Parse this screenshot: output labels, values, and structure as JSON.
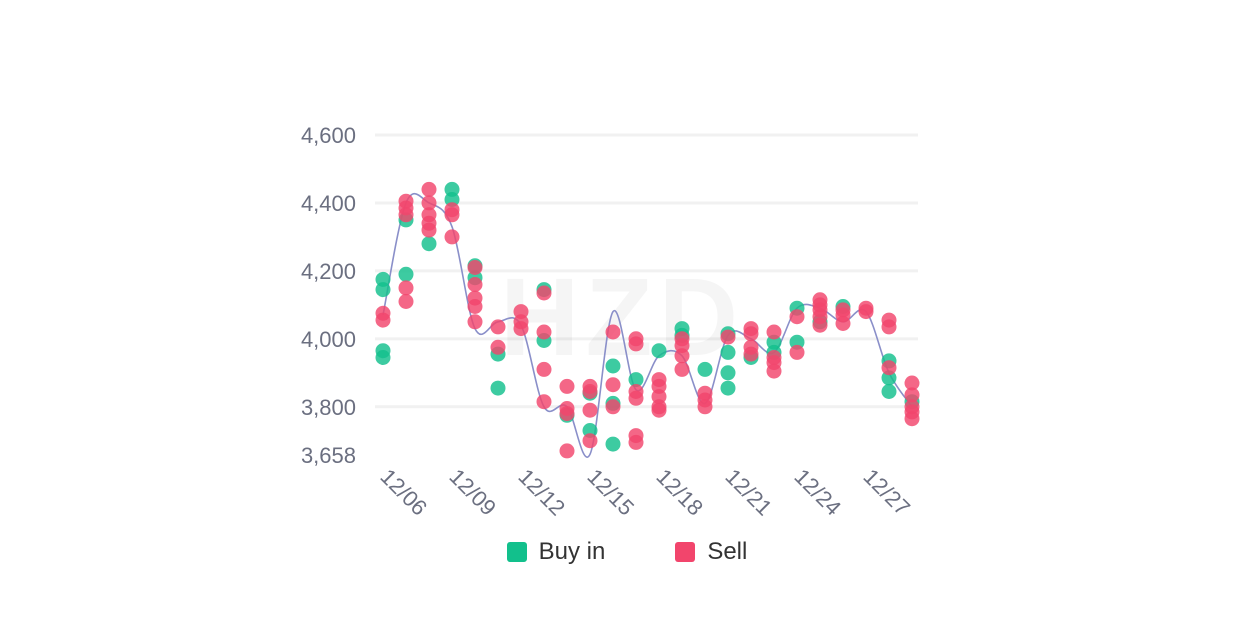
{
  "watermark": "HZD",
  "colors": {
    "buy": "#12c08c",
    "sell": "#f2456c",
    "trend": "#8a8fc9"
  },
  "chart_data": {
    "type": "scatter",
    "x_ticks": [
      "12/06",
      "12/09",
      "12/12",
      "12/15",
      "12/18",
      "12/21",
      "12/24",
      "12/27"
    ],
    "y_ticks": [
      "4,600",
      "4,400",
      "4,200",
      "4,000",
      "3,800",
      "3,658"
    ],
    "y_tick_values": [
      4600,
      4400,
      4200,
      4000,
      3800,
      3658
    ],
    "ylim": [
      3658,
      4600
    ],
    "x_start": "12/06",
    "x_end": "12/29",
    "grid": true,
    "legend_position": "bottom-center",
    "series": [
      {
        "name": "Buy in",
        "color": "#12c08c",
        "points": [
          [
            "12/06",
            4175
          ],
          [
            "12/06",
            4145
          ],
          [
            "12/06",
            3965
          ],
          [
            "12/06",
            3945
          ],
          [
            "12/07",
            4350
          ],
          [
            "12/07",
            4190
          ],
          [
            "12/08",
            4280
          ],
          [
            "12/09",
            4440
          ],
          [
            "12/09",
            4410
          ],
          [
            "12/10",
            4215
          ],
          [
            "12/10",
            4180
          ],
          [
            "12/11",
            3955
          ],
          [
            "12/11",
            3855
          ],
          [
            "12/13",
            4145
          ],
          [
            "12/13",
            3995
          ],
          [
            "12/14",
            3775
          ],
          [
            "12/15",
            3840
          ],
          [
            "12/15",
            3730
          ],
          [
            "12/16",
            3920
          ],
          [
            "12/16",
            3810
          ],
          [
            "12/16",
            3690
          ],
          [
            "12/17",
            3880
          ],
          [
            "12/18",
            3965
          ],
          [
            "12/19",
            4030
          ],
          [
            "12/19",
            4010
          ],
          [
            "12/20",
            3910
          ],
          [
            "12/21",
            4015
          ],
          [
            "12/21",
            3960
          ],
          [
            "12/21",
            3900
          ],
          [
            "12/21",
            3855
          ],
          [
            "12/22",
            3945
          ],
          [
            "12/23",
            3990
          ],
          [
            "12/23",
            3960
          ],
          [
            "12/24",
            4090
          ],
          [
            "12/24",
            3990
          ],
          [
            "12/25",
            4050
          ],
          [
            "12/26",
            4095
          ],
          [
            "12/28",
            3935
          ],
          [
            "12/28",
            3885
          ],
          [
            "12/28",
            3845
          ],
          [
            "12/29",
            3815
          ]
        ]
      },
      {
        "name": "Sell",
        "color": "#f2456c",
        "points": [
          [
            "12/06",
            4075
          ],
          [
            "12/06",
            4055
          ],
          [
            "12/07",
            4405
          ],
          [
            "12/07",
            4385
          ],
          [
            "12/07",
            4365
          ],
          [
            "12/07",
            4150
          ],
          [
            "12/07",
            4110
          ],
          [
            "12/08",
            4440
          ],
          [
            "12/08",
            4400
          ],
          [
            "12/08",
            4365
          ],
          [
            "12/08",
            4340
          ],
          [
            "12/08",
            4320
          ],
          [
            "12/09",
            4380
          ],
          [
            "12/09",
            4365
          ],
          [
            "12/09",
            4300
          ],
          [
            "12/10",
            4210
          ],
          [
            "12/10",
            4160
          ],
          [
            "12/10",
            4120
          ],
          [
            "12/10",
            4095
          ],
          [
            "12/10",
            4050
          ],
          [
            "12/11",
            4035
          ],
          [
            "12/11",
            3975
          ],
          [
            "12/12",
            4080
          ],
          [
            "12/12",
            4050
          ],
          [
            "12/12",
            4030
          ],
          [
            "12/13",
            4135
          ],
          [
            "12/13",
            4020
          ],
          [
            "12/13",
            3910
          ],
          [
            "12/13",
            3815
          ],
          [
            "12/14",
            3860
          ],
          [
            "12/14",
            3795
          ],
          [
            "12/14",
            3780
          ],
          [
            "12/14",
            3670
          ],
          [
            "12/15",
            3860
          ],
          [
            "12/15",
            3845
          ],
          [
            "12/15",
            3790
          ],
          [
            "12/15",
            3700
          ],
          [
            "12/16",
            4020
          ],
          [
            "12/16",
            3865
          ],
          [
            "12/16",
            3800
          ],
          [
            "12/17",
            4000
          ],
          [
            "12/17",
            3985
          ],
          [
            "12/17",
            3845
          ],
          [
            "12/17",
            3825
          ],
          [
            "12/17",
            3715
          ],
          [
            "12/17",
            3695
          ],
          [
            "12/18",
            3880
          ],
          [
            "12/18",
            3860
          ],
          [
            "12/18",
            3830
          ],
          [
            "12/18",
            3800
          ],
          [
            "12/18",
            3790
          ],
          [
            "12/19",
            4000
          ],
          [
            "12/19",
            3980
          ],
          [
            "12/19",
            3950
          ],
          [
            "12/19",
            3910
          ],
          [
            "12/20",
            3840
          ],
          [
            "12/20",
            3820
          ],
          [
            "12/20",
            3800
          ],
          [
            "12/21",
            4005
          ],
          [
            "12/22",
            4030
          ],
          [
            "12/22",
            4015
          ],
          [
            "12/22",
            3975
          ],
          [
            "12/22",
            3955
          ],
          [
            "12/23",
            4020
          ],
          [
            "12/23",
            3945
          ],
          [
            "12/23",
            3930
          ],
          [
            "12/23",
            3905
          ],
          [
            "12/24",
            4065
          ],
          [
            "12/24",
            3960
          ],
          [
            "12/25",
            4115
          ],
          [
            "12/25",
            4100
          ],
          [
            "12/25",
            4085
          ],
          [
            "12/25",
            4065
          ],
          [
            "12/25",
            4040
          ],
          [
            "12/26",
            4085
          ],
          [
            "12/26",
            4070
          ],
          [
            "12/26",
            4045
          ],
          [
            "12/27",
            4090
          ],
          [
            "12/27",
            4080
          ],
          [
            "12/28",
            4055
          ],
          [
            "12/28",
            4035
          ],
          [
            "12/28",
            3915
          ],
          [
            "12/29",
            3870
          ],
          [
            "12/29",
            3835
          ],
          [
            "12/29",
            3800
          ],
          [
            "12/29",
            3785
          ],
          [
            "12/29",
            3765
          ]
        ]
      }
    ],
    "trend_line": [
      [
        "12/06",
        4070
      ],
      [
        "12/07",
        4400
      ],
      [
        "12/08",
        4400
      ],
      [
        "12/09",
        4330
      ],
      [
        "12/10",
        4030
      ],
      [
        "12/11",
        4050
      ],
      [
        "12/12",
        4040
      ],
      [
        "12/13",
        3800
      ],
      [
        "12/14",
        3800
      ],
      [
        "12/15",
        3660
      ],
      [
        "12/16",
        4080
      ],
      [
        "12/17",
        3850
      ],
      [
        "12/18",
        3950
      ],
      [
        "12/19",
        3950
      ],
      [
        "12/20",
        3810
      ],
      [
        "12/21",
        4010
      ],
      [
        "12/22",
        4000
      ],
      [
        "12/23",
        3960
      ],
      [
        "12/24",
        4090
      ],
      [
        "12/25",
        4090
      ],
      [
        "12/26",
        4050
      ],
      [
        "12/27",
        4080
      ],
      [
        "12/28",
        3900
      ],
      [
        "12/29",
        3800
      ]
    ]
  }
}
